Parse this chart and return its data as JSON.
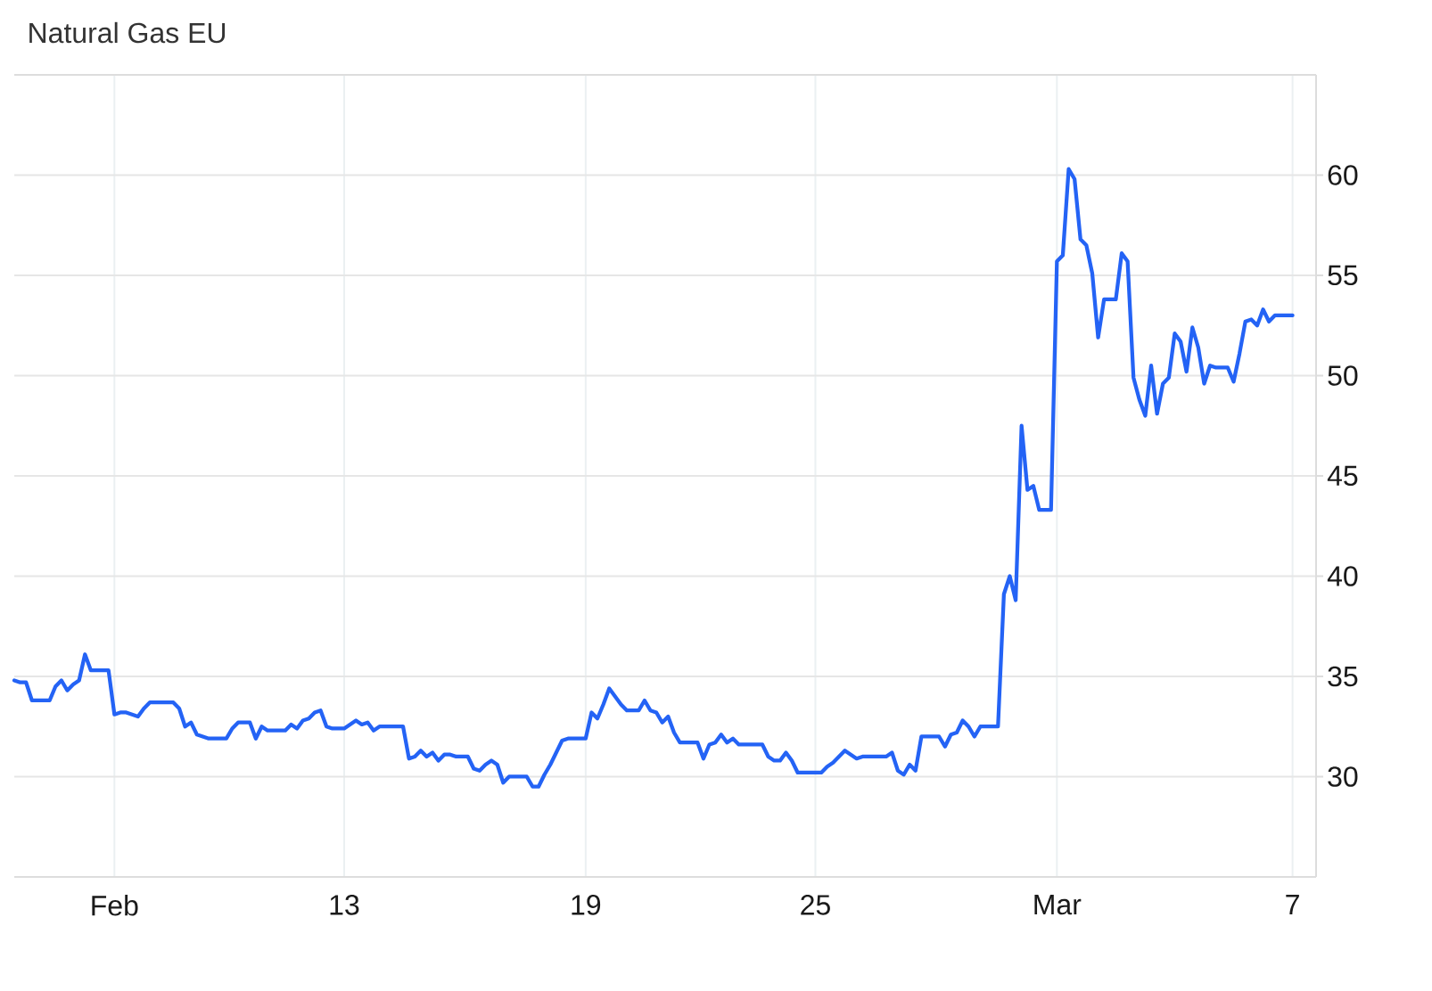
{
  "chart_data": {
    "type": "line",
    "title": "Natural Gas EU",
    "categories": [
      null,
      null,
      null,
      null,
      null,
      null,
      null,
      null,
      null,
      null,
      null,
      null,
      null,
      null,
      null,
      null,
      null,
      "Feb",
      null,
      null,
      null,
      null,
      null,
      null,
      null,
      null,
      null,
      null,
      null,
      null,
      null,
      null,
      null,
      null,
      null,
      null,
      null,
      null,
      null,
      null,
      null,
      null,
      null,
      null,
      null,
      null,
      null,
      null,
      null,
      null,
      null,
      null,
      null,
      null,
      null,
      null,
      "13",
      null,
      null,
      null,
      null,
      null,
      null,
      null,
      null,
      null,
      null,
      null,
      null,
      null,
      null,
      null,
      null,
      null,
      null,
      null,
      null,
      null,
      null,
      null,
      null,
      null,
      null,
      null,
      null,
      null,
      null,
      null,
      null,
      null,
      null,
      null,
      null,
      null,
      null,
      null,
      null,
      "19",
      null,
      null,
      null,
      null,
      null,
      null,
      null,
      null,
      null,
      null,
      null,
      null,
      null,
      null,
      null,
      null,
      null,
      null,
      null,
      null,
      null,
      null,
      null,
      null,
      null,
      null,
      null,
      null,
      null,
      null,
      null,
      null,
      null,
      null,
      null,
      null,
      null,
      null,
      "25",
      null,
      null,
      null,
      null,
      null,
      null,
      null,
      null,
      null,
      null,
      null,
      null,
      null,
      null,
      null,
      null,
      null,
      null,
      null,
      null,
      null,
      null,
      null,
      null,
      null,
      null,
      null,
      null,
      null,
      null,
      null,
      null,
      null,
      null,
      null,
      null,
      null,
      null,
      null,
      null,
      "Mar",
      null,
      null,
      null,
      null,
      null,
      null,
      null,
      null,
      null,
      null,
      null,
      null,
      null,
      null,
      null,
      null,
      null,
      null,
      null,
      null,
      null,
      null,
      null,
      null,
      null,
      null,
      null,
      null,
      null,
      null,
      null,
      null,
      null,
      null,
      null,
      null,
      null,
      null,
      null,
      "7"
    ],
    "series": [
      {
        "color": "#2463f5",
        "values": [
          34.8,
          34.7,
          34.7,
          33.8,
          33.8,
          33.8,
          33.8,
          34.5,
          34.8,
          34.3,
          34.6,
          34.8,
          36.1,
          35.3,
          35.3,
          35.3,
          35.3,
          33.1,
          33.2,
          33.2,
          33.1,
          33.0,
          33.4,
          33.7,
          33.7,
          33.7,
          33.7,
          33.7,
          33.4,
          32.5,
          32.7,
          32.1,
          32.0,
          31.9,
          31.9,
          31.9,
          31.9,
          32.4,
          32.7,
          32.7,
          32.7,
          31.9,
          32.5,
          32.3,
          32.3,
          32.3,
          32.3,
          32.6,
          32.4,
          32.8,
          32.9,
          33.2,
          33.3,
          32.5,
          32.4,
          32.4,
          32.4,
          32.6,
          32.8,
          32.6,
          32.7,
          32.3,
          32.5,
          32.5,
          32.5,
          32.5,
          32.5,
          30.9,
          31.0,
          31.3,
          31.0,
          31.2,
          30.8,
          31.1,
          31.1,
          31.0,
          31.0,
          31.0,
          30.4,
          30.3,
          30.6,
          30.8,
          30.6,
          29.7,
          30.0,
          30.0,
          30.0,
          30.0,
          29.5,
          29.5,
          30.1,
          30.6,
          31.2,
          31.8,
          31.9,
          31.9,
          31.9,
          31.9,
          33.2,
          32.9,
          33.6,
          34.4,
          34.0,
          33.6,
          33.3,
          33.3,
          33.3,
          33.8,
          33.3,
          33.2,
          32.7,
          33.0,
          32.2,
          31.7,
          31.7,
          31.7,
          31.7,
          30.9,
          31.6,
          31.7,
          32.1,
          31.7,
          31.9,
          31.6,
          31.6,
          31.6,
          31.6,
          31.6,
          31.0,
          30.8,
          30.8,
          31.2,
          30.8,
          30.2,
          30.2,
          30.2,
          30.2,
          30.2,
          30.5,
          30.7,
          31.0,
          31.3,
          31.1,
          30.9,
          31.0,
          31.0,
          31.0,
          31.0,
          31.0,
          31.2,
          30.3,
          30.1,
          30.6,
          30.3,
          32.0,
          32.0,
          32.0,
          32.0,
          31.5,
          32.1,
          32.2,
          32.8,
          32.5,
          32.0,
          32.5,
          32.5,
          32.5,
          32.5,
          39.1,
          40.0,
          38.8,
          47.5,
          44.3,
          44.5,
          43.3,
          43.3,
          43.3,
          55.7,
          56.0,
          60.3,
          59.8,
          56.8,
          56.5,
          55.1,
          51.9,
          53.8,
          53.8,
          53.8,
          56.1,
          55.7,
          49.9,
          48.8,
          48.0,
          50.5,
          48.1,
          49.6,
          49.9,
          52.1,
          51.7,
          50.2,
          52.4,
          51.4,
          49.6,
          50.5,
          50.4,
          50.4,
          50.4,
          49.7,
          51.1,
          52.7,
          52.8,
          52.5,
          53.3,
          52.7,
          53.0,
          53.0,
          53.0,
          53.0
        ]
      }
    ],
    "ylim": [
      25,
      65
    ],
    "yticks": [
      30,
      35,
      40,
      45,
      50,
      55,
      60
    ],
    "grid": true,
    "marker": "none",
    "line_style": "solid"
  }
}
